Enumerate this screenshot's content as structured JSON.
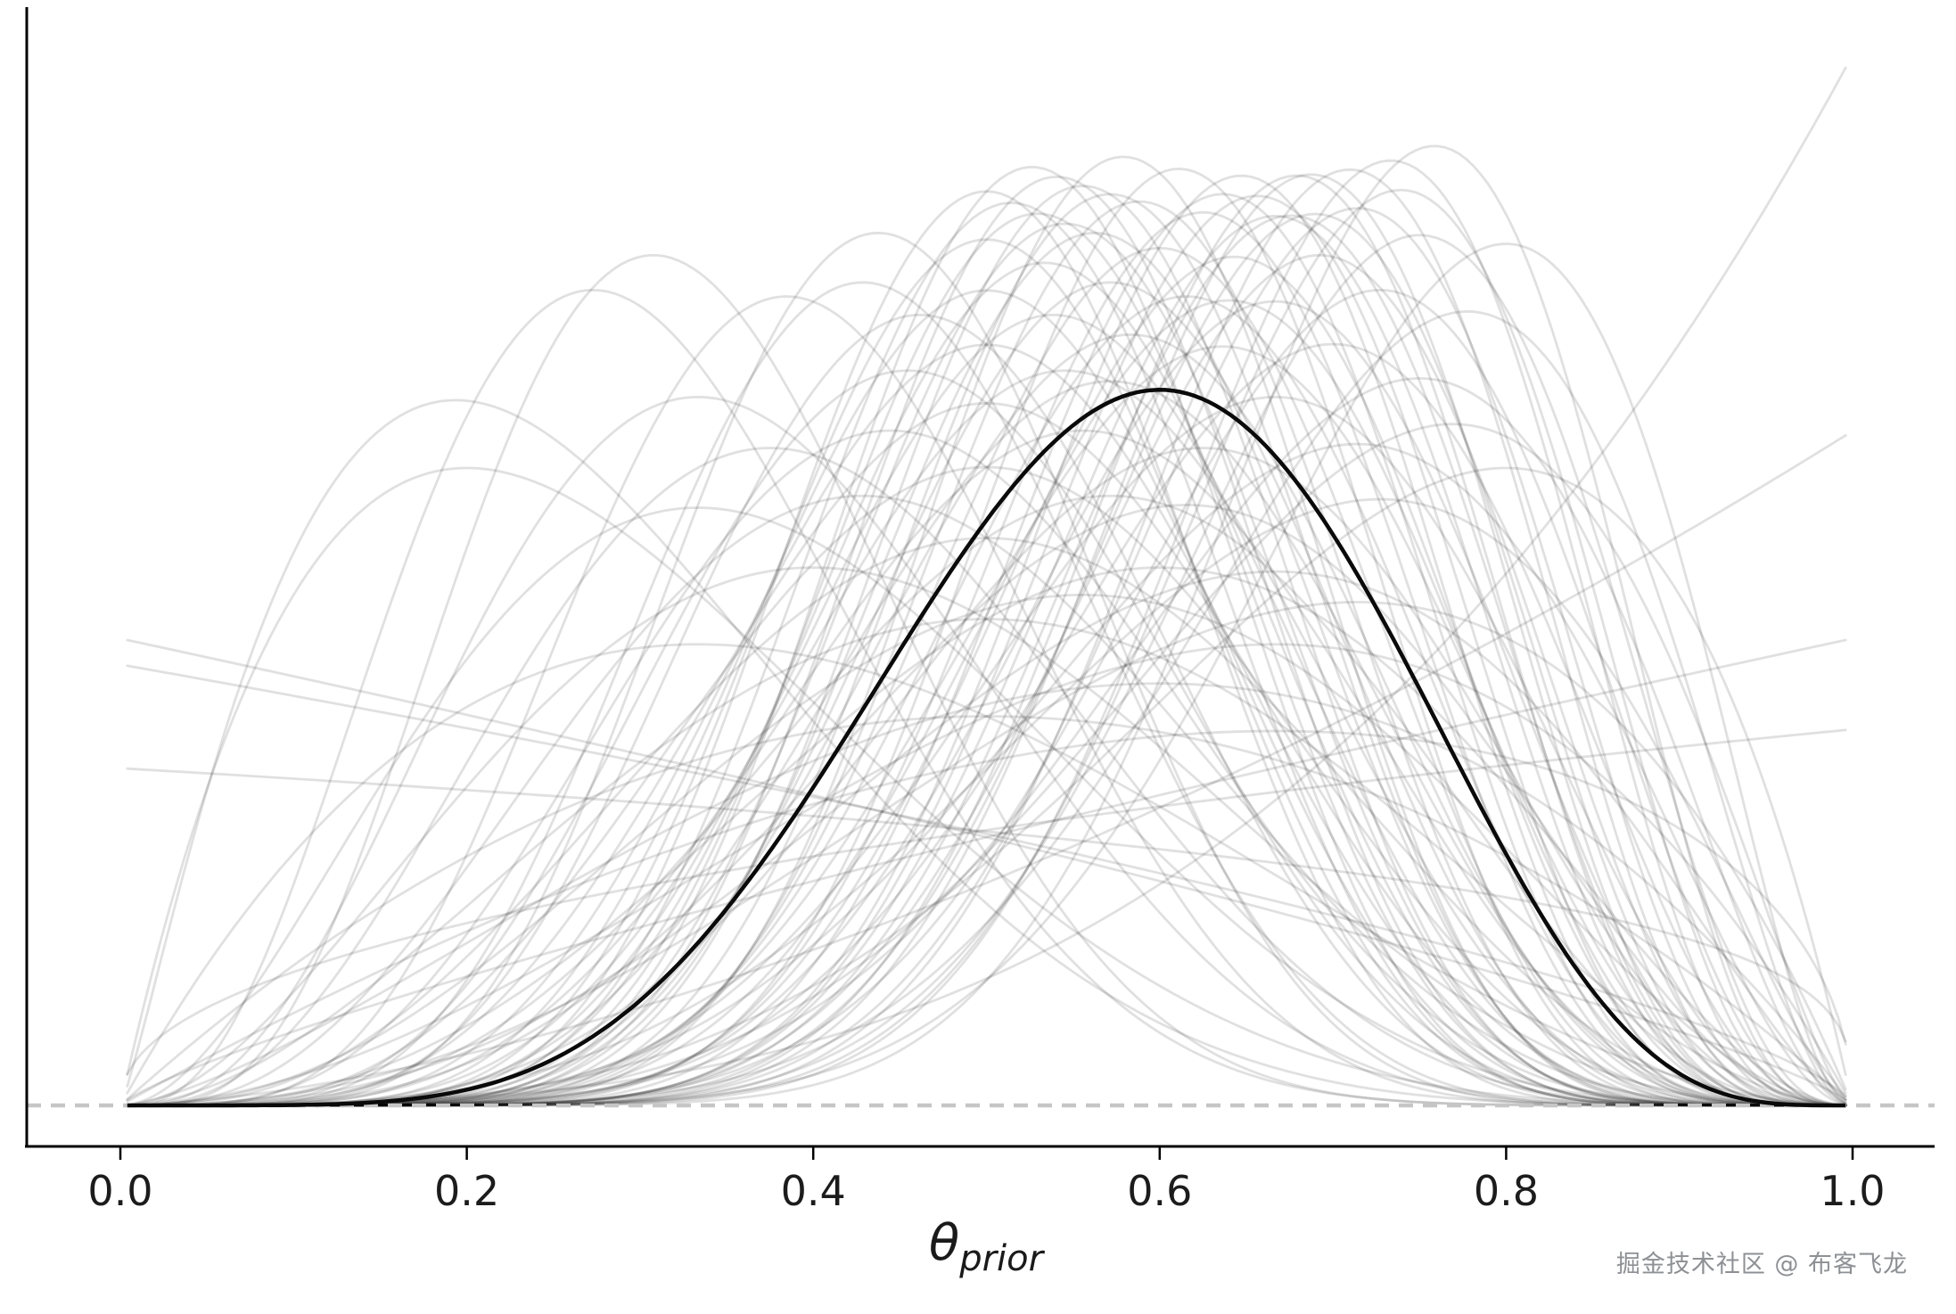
{
  "watermark": "掘金技术社区 @ 布客飞龙",
  "chart_data": {
    "type": "line",
    "title": "",
    "xlabel": "θ_prior",
    "xlabel_main": "θ",
    "xlabel_sub": "prior",
    "ylabel": "",
    "xlim": [
      0.0,
      1.0
    ],
    "ylim": [
      0.0,
      4.2
    ],
    "x_tick_labels": [
      "0.0",
      "0.2",
      "0.4",
      "0.6",
      "0.8",
      "1.0"
    ],
    "x_ticks": [
      0.0,
      0.2,
      0.4,
      0.6,
      0.8,
      1.0
    ],
    "y_ticks": [],
    "grid": false,
    "legend": false,
    "description": "Ensemble of sampled Beta prior distributions over theta (light gray) with the mean prior Beta distribution highlighted in black; dashed gray line marks density zero.",
    "zero_line": {
      "y": 0.0,
      "style": "dashed",
      "color": "#c6c6c6"
    },
    "highlight_curve": {
      "name": "mean-prior",
      "distribution": "beta_pdf",
      "a": 7.0,
      "b": 5.0,
      "color": "#0a0a0a",
      "line_width": 4.5,
      "opacity": 1.0,
      "peak_x": 0.6,
      "peak_density": 2.76
    },
    "prior_samples": {
      "distribution": "beta_pdf",
      "color": "#000000",
      "opacity": 0.12,
      "line_width": 2.8,
      "count": 92,
      "params": [
        [
          2,
          5
        ],
        [
          3,
          4
        ],
        [
          8,
          6
        ],
        [
          12,
          7
        ],
        [
          5,
          2
        ],
        [
          9,
          9
        ],
        [
          11,
          6
        ],
        [
          4,
          4
        ],
        [
          11.5,
          7
        ],
        [
          6,
          3
        ],
        [
          10,
          4
        ],
        [
          7,
          7
        ],
        [
          3,
          2
        ],
        [
          12,
          6
        ],
        [
          12,
          9
        ],
        [
          2,
          2
        ],
        [
          5,
          5
        ],
        [
          8,
          3
        ],
        [
          4,
          7
        ],
        [
          11,
          9
        ],
        [
          11,
          5
        ],
        [
          6,
          6
        ],
        [
          9,
          4
        ],
        [
          11,
          9.5
        ],
        [
          3.5,
          3
        ],
        [
          7,
          4
        ],
        [
          10,
          8
        ],
        [
          5,
          3.5
        ],
        [
          12,
          5
        ],
        [
          2,
          1.5
        ],
        [
          8,
          8
        ],
        [
          6,
          4
        ],
        [
          12,
          6.2
        ],
        [
          4,
          2.5
        ],
        [
          12,
          8
        ],
        [
          7,
          5.5
        ],
        [
          9,
          6
        ],
        [
          11,
          5.5
        ],
        [
          3,
          3
        ],
        [
          11.5,
          6.5
        ],
        [
          5,
          4
        ],
        [
          11,
          5.8
        ],
        [
          6,
          5
        ],
        [
          10,
          10
        ],
        [
          8,
          5
        ],
        [
          4,
          3
        ],
        [
          11,
          7
        ],
        [
          7,
          3
        ],
        [
          10,
          7
        ],
        [
          2.5,
          2
        ],
        [
          9,
          7
        ],
        [
          10,
          8.5
        ],
        [
          5,
          6
        ],
        [
          10,
          6
        ],
        [
          6,
          2.5
        ],
        [
          12,
          5.5
        ],
        [
          3,
          5
        ],
        [
          9,
          5.5
        ],
        [
          8,
          4
        ],
        [
          11,
          10
        ],
        [
          4,
          6
        ],
        [
          11.2,
          4.6
        ],
        [
          7,
          6
        ],
        [
          9,
          3
        ],
        [
          11,
          8
        ],
        [
          5,
          2.5
        ],
        [
          10,
          9
        ],
        [
          6,
          7
        ],
        [
          12,
          4.5
        ],
        [
          2,
          3
        ],
        [
          10,
          5
        ],
        [
          8,
          7
        ],
        [
          10,
          9.5
        ],
        [
          3.5,
          2
        ],
        [
          9,
          8
        ],
        [
          7,
          8
        ],
        [
          9,
          5
        ],
        [
          11,
          8.5
        ],
        [
          4,
          5
        ],
        [
          5,
          10
        ],
        [
          4,
          9
        ],
        [
          2.2,
          6
        ],
        [
          1,
          1.7
        ],
        [
          1,
          1.3
        ],
        [
          1,
          1.8
        ],
        [
          2.6,
          1
        ],
        [
          1.8,
          1
        ],
        [
          1.45,
          1
        ],
        [
          4.05,
          1
        ],
        [
          6,
          9
        ],
        [
          7,
          9
        ],
        [
          8,
          10
        ]
      ]
    }
  }
}
